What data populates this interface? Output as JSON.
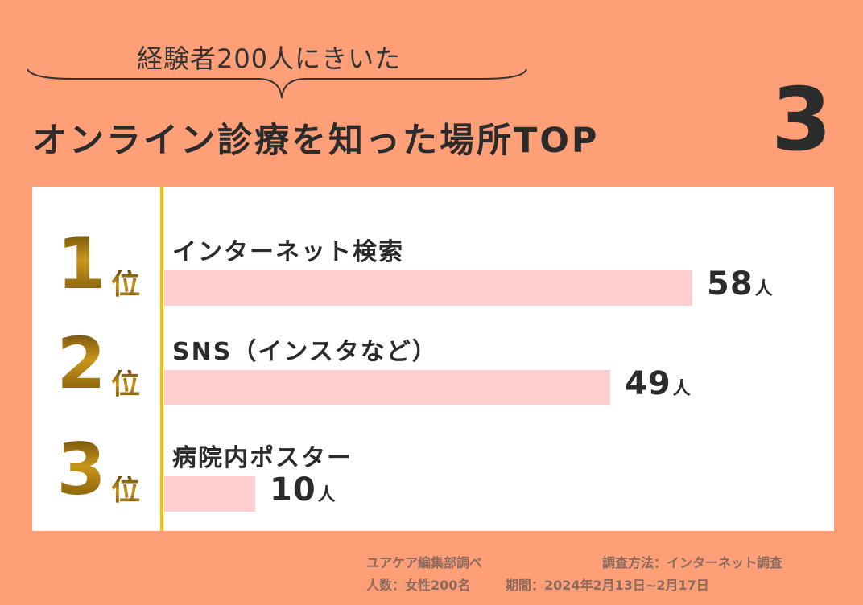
{
  "header": {
    "subtitle": "経験者200人にきいた",
    "title_text": "オンライン診療を知った場所TOP",
    "title_number": "3"
  },
  "colors": {
    "background": "#FF9F78",
    "panel": "#ffffff",
    "bar": "#FFCFCF",
    "divider": "#F2C200",
    "rank_gold": "#A57A12",
    "text": "#2b2b2b"
  },
  "chart_data": {
    "type": "bar",
    "orientation": "horizontal",
    "categories": [
      "インターネット検索",
      "SNS（インスタなど）",
      "病院内ポスター"
    ],
    "values": [
      58,
      49,
      10
    ],
    "unit": "人",
    "ranks": [
      "1",
      "2",
      "3"
    ],
    "rank_suffix": "位",
    "xlim": [
      0,
      75
    ]
  },
  "footer": {
    "source": "ユアケア編集部調べ",
    "method": "調査方法：インターネット調査",
    "respondents": "人数：女性200名",
    "period": "期間：2024年2月13日~2月17日"
  }
}
